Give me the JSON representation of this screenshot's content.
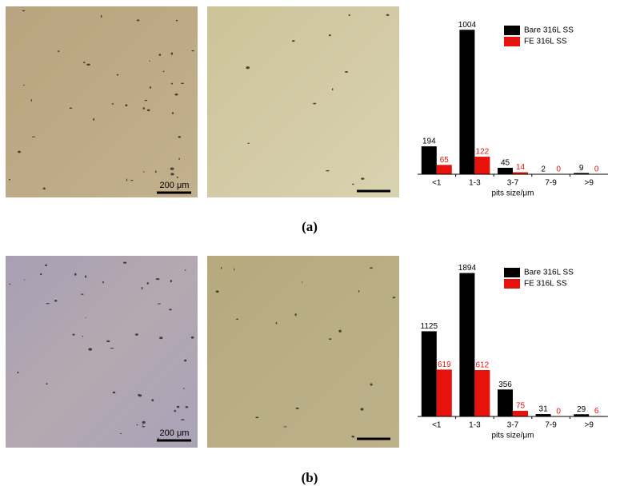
{
  "panels": [
    {
      "label": "(a)",
      "scale_bar": "200 μm"
    },
    {
      "label": "(b)",
      "scale_bar": "200 μm"
    }
  ],
  "chart_data": [
    {
      "type": "bar",
      "x_label": "pits size/μm",
      "categories": [
        "<1",
        "1-3",
        "3-7",
        "7-9",
        ">9"
      ],
      "series": [
        {
          "name": "Bare 316L SS",
          "color": "#000000",
          "label_color": "#000000",
          "values": [
            194,
            1004,
            45,
            2,
            9
          ]
        },
        {
          "name": "FE 316L SS",
          "color": "#e8120c",
          "label_color": "#e8120c",
          "values": [
            65,
            122,
            14,
            0,
            0
          ]
        }
      ],
      "ylim": [
        0,
        1100
      ],
      "legend": "upper right",
      "grid": false
    },
    {
      "type": "bar",
      "x_label": "pits size/μm",
      "categories": [
        "<1",
        "1-3",
        "3-7",
        "7-9",
        ">9"
      ],
      "series": [
        {
          "name": "Bare 316L SS",
          "color": "#000000",
          "label_color": "#000000",
          "values": [
            1125,
            1894,
            356,
            31,
            29
          ]
        },
        {
          "name": "FE 316L SS",
          "color": "#e8120c",
          "label_color": "#e8120c",
          "values": [
            619,
            612,
            75,
            0,
            6
          ]
        }
      ],
      "ylim": [
        0,
        2090
      ],
      "legend": "upper right",
      "grid": false
    }
  ]
}
